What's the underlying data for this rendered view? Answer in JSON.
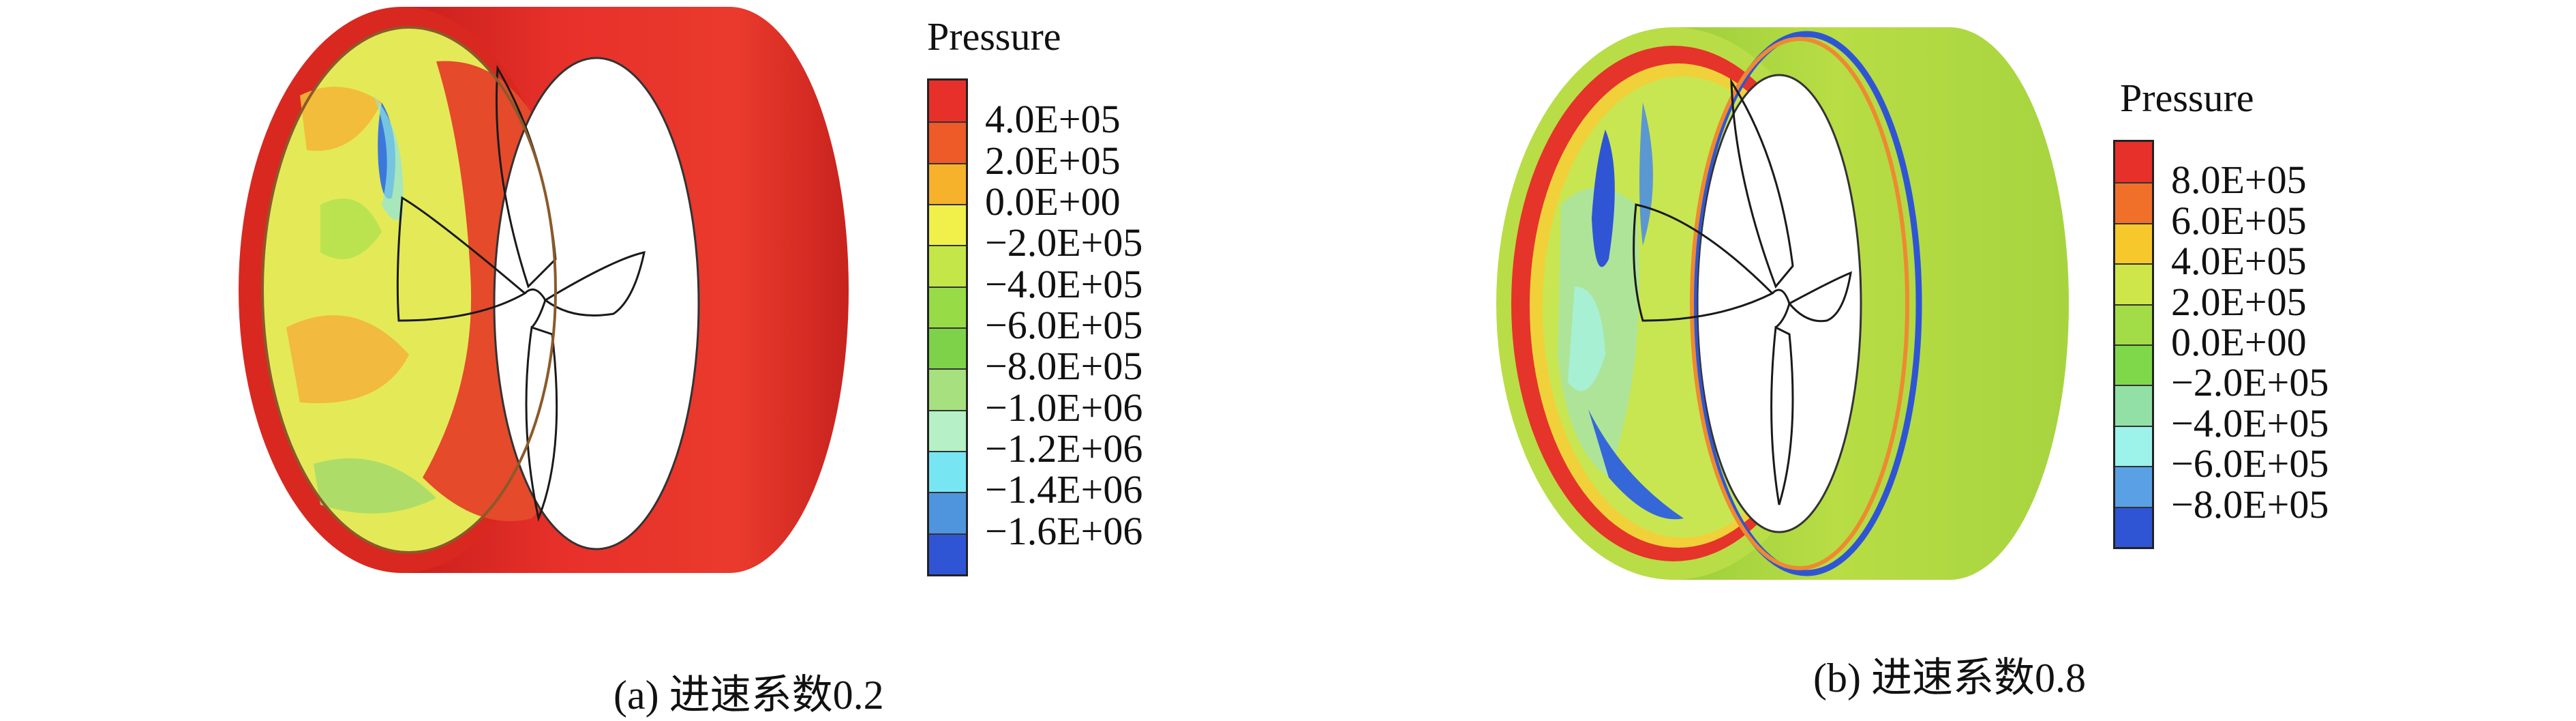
{
  "panels": [
    {
      "id": "a",
      "caption": "(a) 进速系数0.2",
      "legend": {
        "title": "Pressure",
        "labels": [
          "4.0E+05",
          "2.0E+05",
          "0.0E+00",
          "−2.0E+05",
          "−4.0E+05",
          "−6.0E+05",
          "−8.0E+05",
          "−1.0E+06",
          "−1.2E+06",
          "−1.4E+06",
          "−1.6E+06"
        ],
        "colors": [
          "#e8302a",
          "#ee5a28",
          "#f6b22a",
          "#f1f04a",
          "#c4e649",
          "#97dc47",
          "#7ed24a",
          "#a7e07f",
          "#b5f0c6",
          "#77e6f2",
          "#4f95dd",
          "#2f55d5"
        ]
      }
    },
    {
      "id": "b",
      "caption": "(b) 进速系数0.8",
      "legend": {
        "title": "Pressure",
        "labels": [
          "8.0E+05",
          "6.0E+05",
          "4.0E+05",
          "2.0E+05",
          "0.0E+00",
          "−2.0E+05",
          "−4.0E+05",
          "−6.0E+05",
          "−8.0E+05"
        ],
        "colors": [
          "#e8302a",
          "#f0702a",
          "#f6c82c",
          "#cfe64a",
          "#a2dc46",
          "#7fd84a",
          "#92e0a6",
          "#9df2ea",
          "#5aa0e4",
          "#2f55d5"
        ]
      }
    }
  ]
}
